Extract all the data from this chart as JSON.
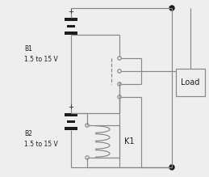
{
  "bg_color": "#eeeeee",
  "line_color": "#888888",
  "dark_color": "#1c1c1c",
  "b1_label": "B1\n1.5 to 15 V",
  "b2_label": "B2\n1.5 to 15 V",
  "k1_label": "K1",
  "load_label": "Load",
  "plus": "+",
  "lw": 0.85,
  "r_contact": 2.2,
  "r_dot": 3.0,
  "bar_lw": 3.0
}
